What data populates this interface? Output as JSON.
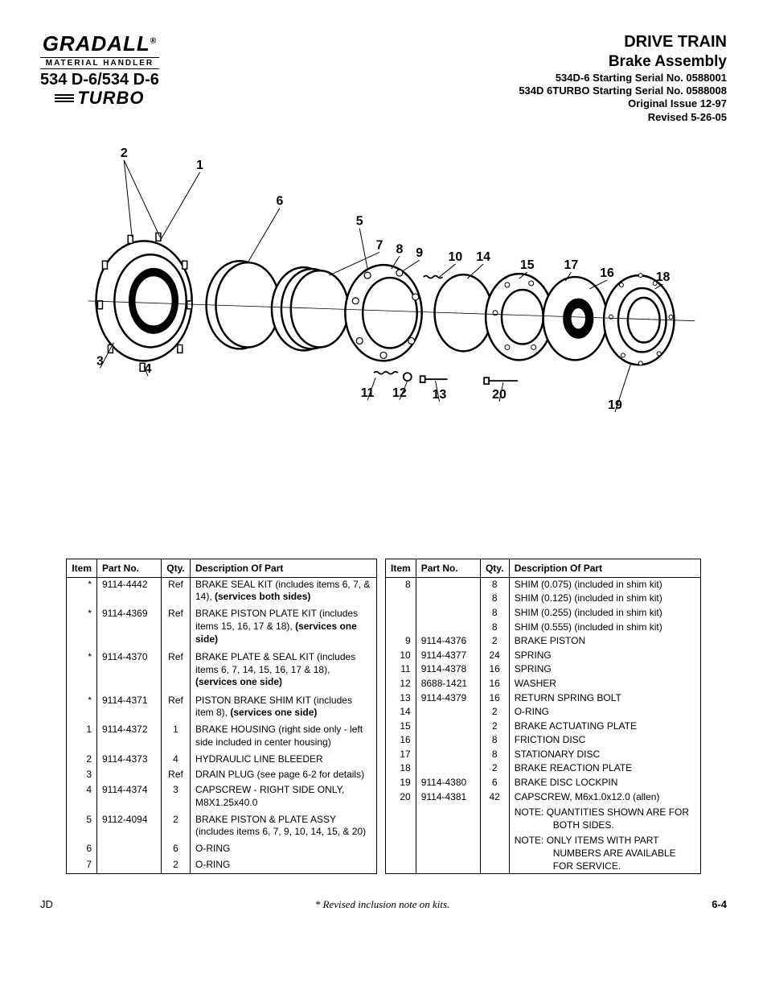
{
  "logo": {
    "brand": "GRADALL",
    "registered": "®",
    "subtitle": "MATERIAL HANDLER",
    "model": "534 D-6/534 D-6",
    "turbo": "TURBO"
  },
  "title": {
    "line1": "DRIVE TRAIN",
    "line2": "Brake Assembly",
    "line3": "534D-6 Starting Serial No. 0588001",
    "line4": "534D 6TURBO Starting Serial No. 0588008",
    "line5": "Original Issue 12-97",
    "line6": "Revised  5-26-05"
  },
  "diagram": {
    "callouts": [
      "1",
      "2",
      "3",
      "4",
      "5",
      "6",
      "7",
      "8",
      "9",
      "10",
      "11",
      "12",
      "13",
      "14",
      "15",
      "16",
      "17",
      "18",
      "19",
      "20"
    ],
    "callout_font_size": 16,
    "callout_font_weight": "bold",
    "stroke_color": "#000000",
    "stroke_width": 1.2,
    "component_fill": "#ffffff"
  },
  "table": {
    "headers": [
      "Item",
      "Part No.",
      "Qty.",
      "Description Of Part"
    ],
    "left_rows": [
      {
        "item": "*",
        "part": "9114-4442",
        "qty": "Ref",
        "desc": [
          {
            "t": "BRAKE SEAL KIT (includes items 6, 7, & 14), "
          },
          {
            "t": "(services both sides)",
            "b": true
          }
        ]
      },
      {
        "item": "*",
        "part": "9114-4369",
        "qty": "Ref",
        "desc": [
          {
            "t": "BRAKE PISTON PLATE KIT (includes items 15, 16, 17 & 18), "
          },
          {
            "t": "(services one side)",
            "b": true
          }
        ]
      },
      {
        "item": "*",
        "part": "9114-4370",
        "qty": "Ref",
        "desc": [
          {
            "t": "BRAKE PLATE & SEAL KIT (includes items 6, 7, 14, 15, 16, 17 & 18), "
          },
          {
            "t": "(services one side)",
            "b": true
          }
        ]
      },
      {
        "item": "*",
        "part": "9114-4371",
        "qty": "Ref",
        "desc": [
          {
            "t": "PISTON BRAKE SHIM KIT (includes item 8), "
          },
          {
            "t": "(services one side)",
            "b": true
          }
        ]
      },
      {
        "item": "1",
        "part": "9114-4372",
        "qty": "1",
        "desc": [
          {
            "t": "BRAKE HOUSING (right side only - left side included in center housing)"
          }
        ]
      },
      {
        "item": "2",
        "part": "9114-4373",
        "qty": "4",
        "desc": [
          {
            "t": "HYDRAULIC LINE BLEEDER"
          }
        ]
      },
      {
        "item": "3",
        "part": "",
        "qty": "Ref",
        "desc": [
          {
            "t": "DRAIN PLUG (see  page 6-2 for details)"
          }
        ]
      },
      {
        "item": "4",
        "part": "9114-4374",
        "qty": "3",
        "desc": [
          {
            "t": "CAPSCREW - RIGHT SIDE ONLY, M8X1.25x40.0"
          }
        ]
      },
      {
        "item": "5",
        "part": "9112-4094",
        "qty": "2",
        "desc": [
          {
            "t": "BRAKE  PISTON &  PLATE ASSY (includes items 6, 7, 9, 10, 14, 15, & 20)"
          }
        ]
      },
      {
        "item": "6",
        "part": "",
        "qty": "6",
        "desc": [
          {
            "t": "O-RING"
          }
        ]
      },
      {
        "item": "7",
        "part": "",
        "qty": "2",
        "desc": [
          {
            "t": "O-RING"
          }
        ]
      }
    ],
    "right_rows": [
      {
        "item": "8",
        "part": "",
        "qty": "8",
        "desc": [
          {
            "t": "SHIM (0.075) (included in shim kit)"
          }
        ]
      },
      {
        "item": "",
        "part": "",
        "qty": "8",
        "desc": [
          {
            "t": "SHIM (0.125) (included in shim kit)"
          }
        ]
      },
      {
        "item": "",
        "part": "",
        "qty": "8",
        "desc": [
          {
            "t": "SHIM (0.255) (included in shim kit)"
          }
        ]
      },
      {
        "item": "",
        "part": "",
        "qty": "8",
        "desc": [
          {
            "t": "SHIM (0.555) (included in shim kit)"
          }
        ]
      },
      {
        "item": "9",
        "part": "9114-4376",
        "qty": "2",
        "desc": [
          {
            "t": "BRAKE PISTON"
          }
        ]
      },
      {
        "item": "10",
        "part": "9114-4377",
        "qty": "24",
        "desc": [
          {
            "t": "SPRING"
          }
        ]
      },
      {
        "item": "11",
        "part": "9114-4378",
        "qty": "16",
        "desc": [
          {
            "t": "SPRING"
          }
        ]
      },
      {
        "item": "12",
        "part": "8688-1421",
        "qty": "16",
        "desc": [
          {
            "t": "WASHER"
          }
        ]
      },
      {
        "item": "13",
        "part": "9114-4379",
        "qty": "16",
        "desc": [
          {
            "t": "RETURN SPRING BOLT"
          }
        ]
      },
      {
        "item": "14",
        "part": "",
        "qty": "2",
        "desc": [
          {
            "t": "O-RING"
          }
        ]
      },
      {
        "item": "15",
        "part": "",
        "qty": "2",
        "desc": [
          {
            "t": "BRAKE ACTUATING PLATE"
          }
        ]
      },
      {
        "item": "16",
        "part": "",
        "qty": "8",
        "desc": [
          {
            "t": "FRICTION DISC"
          }
        ]
      },
      {
        "item": "17",
        "part": "",
        "qty": "8",
        "desc": [
          {
            "t": "STATIONARY DISC"
          }
        ]
      },
      {
        "item": "18",
        "part": "",
        "qty": "2",
        "desc": [
          {
            "t": "BRAKE REACTION PLATE"
          }
        ]
      },
      {
        "item": "19",
        "part": "9114-4380",
        "qty": "6",
        "desc": [
          {
            "t": "BRAKE DISC LOCKPIN"
          }
        ]
      },
      {
        "item": "20",
        "part": "9114-4381",
        "qty": "42",
        "desc": [
          {
            "t": "CAPSCREW, M6x1.0x12.0 (allen)"
          }
        ]
      },
      {
        "item": "",
        "part": "",
        "qty": "",
        "desc": [
          {
            "t": " "
          }
        ]
      },
      {
        "item": "",
        "part": "",
        "qty": "",
        "desc": [
          {
            "t": "NOTE:  QUANTITIES SHOWN ARE FOR BOTH SIDES."
          }
        ],
        "indent": 54
      },
      {
        "item": "",
        "part": "",
        "qty": "",
        "desc": [
          {
            "t": " "
          }
        ]
      },
      {
        "item": "",
        "part": "",
        "qty": "",
        "desc": [
          {
            "t": "NOTE:  ONLY ITEMS WITH PART NUMBERS ARE AVAILABLE FOR SERVICE."
          }
        ],
        "indent": 54
      }
    ]
  },
  "footer": {
    "left": "JD",
    "mid": "* Revised inclusion note on kits.",
    "right": "6-4"
  }
}
